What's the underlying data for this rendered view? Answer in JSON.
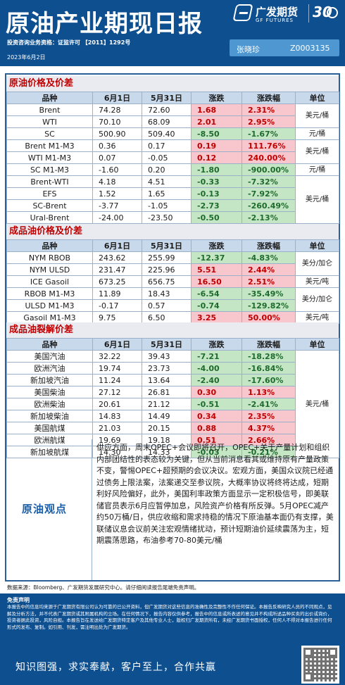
{
  "header": {
    "title": "原油产业期现日报",
    "brand_name": "广发期货",
    "brand_sub": "GF FUTURES",
    "anniversary": "30",
    "license": "投资咨询业务资格：证监许可 【2011】1292号",
    "date": "2023年6月2日",
    "analyst_name": "张晓珍",
    "analyst_id": "Z0003135"
  },
  "crude": {
    "title": "原油价格及价差",
    "columns": [
      "品种",
      "6月1日",
      "5月31日",
      "涨跌",
      "涨跌幅",
      "单位"
    ],
    "rows": [
      {
        "name": "Brent",
        "d1": "74.28",
        "d2": "72.60",
        "chg": "1.68",
        "pct": "2.31%",
        "dir": "pos"
      },
      {
        "name": "WTI",
        "d1": "70.10",
        "d2": "68.09",
        "chg": "2.01",
        "pct": "2.95%",
        "dir": "pos"
      },
      {
        "name": "SC",
        "d1": "500.90",
        "d2": "509.40",
        "chg": "-8.50",
        "pct": "-1.67%",
        "dir": "neg"
      },
      {
        "name": "Brent  M1-M3",
        "d1": "0.36",
        "d2": "0.17",
        "chg": "0.19",
        "pct": "111.76%",
        "dir": "pos"
      },
      {
        "name": "WTI  M1-M3",
        "d1": "0.07",
        "d2": "-0.05",
        "chg": "0.12",
        "pct": "240.00%",
        "dir": "pos"
      },
      {
        "name": "SC  M1-M3",
        "d1": "-1.60",
        "d2": "0.20",
        "chg": "-1.80",
        "pct": "-900.00%",
        "dir": "neg"
      },
      {
        "name": "Brent-WTI",
        "d1": "4.18",
        "d2": "4.51",
        "chg": "-0.33",
        "pct": "-7.32%",
        "dir": "neg"
      },
      {
        "name": "EFS",
        "d1": "1.52",
        "d2": "1.65",
        "chg": "-0.13",
        "pct": "-7.92%",
        "dir": "neg"
      },
      {
        "name": "SC-Brent",
        "d1": "-3.77",
        "d2": "-1.05",
        "chg": "-2.73",
        "pct": "-260.49%",
        "dir": "neg"
      },
      {
        "name": "Ural-Brent",
        "d1": "-24.00",
        "d2": "-23.50",
        "chg": "-0.50",
        "pct": "-2.13%",
        "dir": "neg"
      }
    ],
    "units": [
      "美元/桶",
      "元/桶",
      "美元/桶",
      "元/桶",
      "美元/桶"
    ]
  },
  "products": {
    "title": "成品油价格及价差",
    "columns": [
      "品种",
      "6月1日",
      "5月31日",
      "涨跌",
      "涨跌幅",
      "单位"
    ],
    "rows": [
      {
        "name": "NYM RBOB",
        "d1": "243.62",
        "d2": "255.99",
        "chg": "-12.37",
        "pct": "-4.83%",
        "dir": "neg"
      },
      {
        "name": "NYM ULSD",
        "d1": "231.47",
        "d2": "225.96",
        "chg": "5.51",
        "pct": "2.44%",
        "dir": "pos"
      },
      {
        "name": "ICE Gasoil",
        "d1": "673.25",
        "d2": "656.75",
        "chg": "16.50",
        "pct": "2.51%",
        "dir": "pos"
      },
      {
        "name": "RBOB  M1-M3",
        "d1": "11.89",
        "d2": "18.43",
        "chg": "-6.54",
        "pct": "-35.49%",
        "dir": "neg"
      },
      {
        "name": "ULSD  M1-M3",
        "d1": "-0.17",
        "d2": "0.57",
        "chg": "-0.74",
        "pct": "-129.82%",
        "dir": "neg"
      },
      {
        "name": "Gasoil  M1-M3",
        "d1": "9.75",
        "d2": "6.50",
        "chg": "3.25",
        "pct": "50.00%",
        "dir": "pos"
      }
    ],
    "units": [
      "美分/加仑",
      "美元/吨",
      "美分/加仑",
      "美元/吨"
    ]
  },
  "cracks": {
    "title": "成品油裂解价差",
    "columns": [
      "品种",
      "6月1日",
      "5月31日",
      "涨跌",
      "涨跌幅",
      "单位"
    ],
    "rows": [
      {
        "name": "美国汽油",
        "d1": "32.22",
        "d2": "39.43",
        "chg": "-7.21",
        "pct": "-18.28%",
        "dir": "neg"
      },
      {
        "name": "欧洲汽油",
        "d1": "19.74",
        "d2": "23.73",
        "chg": "-4.00",
        "pct": "-16.84%",
        "dir": "neg"
      },
      {
        "name": "新加坡汽油",
        "d1": "11.24",
        "d2": "13.64",
        "chg": "-2.40",
        "pct": "-17.60%",
        "dir": "neg"
      },
      {
        "name": "美国柴油",
        "d1": "27.12",
        "d2": "26.81",
        "chg": "0.30",
        "pct": "1.13%",
        "dir": "pos"
      },
      {
        "name": "欧洲柴油",
        "d1": "20.61",
        "d2": "21.12",
        "chg": "-0.51",
        "pct": "-2.41%",
        "dir": "neg"
      },
      {
        "name": "新加坡柴油",
        "d1": "14.83",
        "d2": "14.49",
        "chg": "0.34",
        "pct": "2.35%",
        "dir": "pos"
      },
      {
        "name": "美国航煤",
        "d1": "21.03",
        "d2": "20.15",
        "chg": "0.88",
        "pct": "4.37%",
        "dir": "pos"
      },
      {
        "name": "欧洲航煤",
        "d1": "19.69",
        "d2": "19.18",
        "chg": "0.51",
        "pct": "2.66%",
        "dir": "pos"
      },
      {
        "name": "新加坡航煤",
        "d1": "14.30",
        "d2": "14.33",
        "chg": "-0.03",
        "pct": "-0.21%",
        "dir": "neg"
      }
    ],
    "unit": "美元/桶"
  },
  "view": {
    "label": "原油观点",
    "text": "供应方面，周末OPEC+会议即将召开，OPEC+关于产量计划和组织内部团结性的表态较为关键，但从当前消息看其或维持原有产量政策不变，警惕OPEC+超预期的会议决议。宏观方面，美国众议院已经通过债务上限法案，法案递交至参议院，大概率协议将终将达成，短期利好风险偏好，此外，美国利率政策方面显示一定积极信号，即美联储官员表示6月应暂停加息，风险资产价格有所反弹。5月OPEC减产约50万桶/日，供应收缩和需求持稳的情况下原油基本面仍有支撑，美联储议息会议前关注宏观情绪扰动，预计短期油价延续震荡为主，短期震荡思路，布油参考70-80美元/桶"
  },
  "source": "数据来源：Bloomberg、广发期货发展研究中心。请仔细阅读报告尾端免责声明。",
  "footer": {
    "disclaimer_title": "免责声明",
    "disclaimer_text": "本报告中的信息均来源于广发期货有限公司认为可靠的已公开资料，但广发期货对这些信息的准确性及完整性不作任何保证。本报告反映研究人员的不同观点，见解及分析方法，并不代表广发期货或其附属机构的立场。在任何情况下，报告内容仅供参考，报告中的信息或所表述的意见并不构成所述品种买卖的出价或询价，投资者据此投资，风险自担。本报告旨在发送给广发期货特定客户及其他专业人士，版权归广发期货所有，未经广发期货书面授权，任何人不得对本报告进行任何形式的发布、复制。如引用、刊发，需注明出处为广发期货。",
    "slogan": "知识图强，求实奉献，客户至上，合作共赢"
  }
}
